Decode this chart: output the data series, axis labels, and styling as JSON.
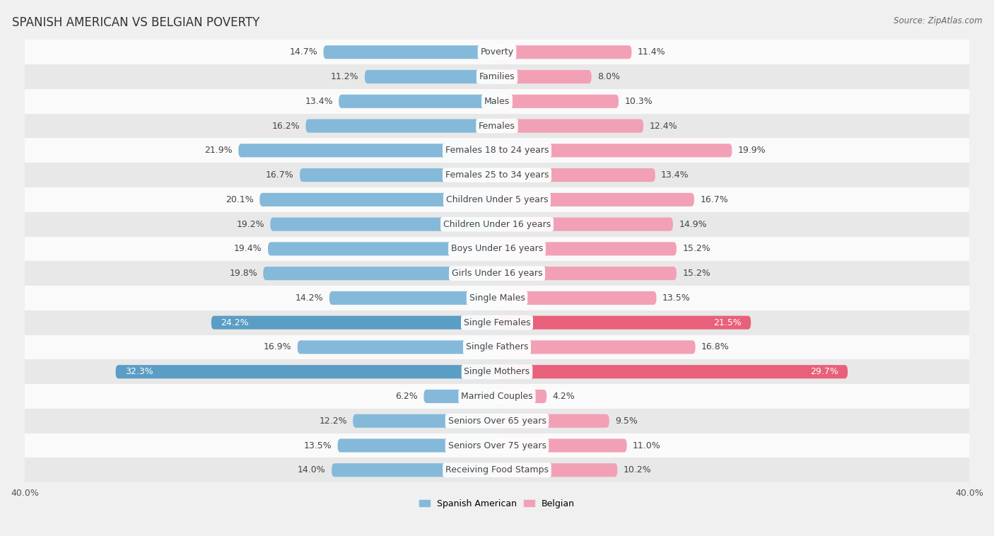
{
  "title": "SPANISH AMERICAN VS BELGIAN POVERTY",
  "source": "Source: ZipAtlas.com",
  "categories": [
    "Poverty",
    "Families",
    "Males",
    "Females",
    "Females 18 to 24 years",
    "Females 25 to 34 years",
    "Children Under 5 years",
    "Children Under 16 years",
    "Boys Under 16 years",
    "Girls Under 16 years",
    "Single Males",
    "Single Females",
    "Single Fathers",
    "Single Mothers",
    "Married Couples",
    "Seniors Over 65 years",
    "Seniors Over 75 years",
    "Receiving Food Stamps"
  ],
  "spanish_american": [
    14.7,
    11.2,
    13.4,
    16.2,
    21.9,
    16.7,
    20.1,
    19.2,
    19.4,
    19.8,
    14.2,
    24.2,
    16.9,
    32.3,
    6.2,
    12.2,
    13.5,
    14.0
  ],
  "belgian": [
    11.4,
    8.0,
    10.3,
    12.4,
    19.9,
    13.4,
    16.7,
    14.9,
    15.2,
    15.2,
    13.5,
    21.5,
    16.8,
    29.7,
    4.2,
    9.5,
    11.0,
    10.2
  ],
  "spanish_color": "#85b9d9",
  "belgian_color": "#f2a0b5",
  "spanish_highlight_color": "#5a9dc5",
  "belgian_highlight_color": "#e8607a",
  "highlight_rows": [
    11,
    13
  ],
  "background_color": "#f0f0f0",
  "row_bg_colors": [
    "#fafafa",
    "#e8e8e8"
  ],
  "xlim": 40.0,
  "bar_height": 0.55,
  "legend_labels": [
    "Spanish American",
    "Belgian"
  ],
  "title_fontsize": 12,
  "label_fontsize": 9,
  "value_fontsize": 9,
  "tick_fontsize": 9,
  "source_fontsize": 8.5
}
